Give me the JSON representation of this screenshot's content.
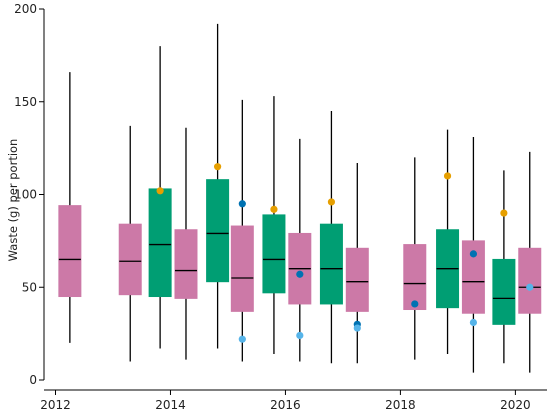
{
  "chart_data": {
    "type": "boxplot",
    "title": "",
    "xlabel": "",
    "ylabel": "Waste (g) per portion",
    "xlim": [
      2011.8,
      2020.55
    ],
    "ylim": [
      0,
      200
    ],
    "x_ticks": [
      2012,
      2014,
      2016,
      2018,
      2020
    ],
    "x_tick_labels": [
      "2012",
      "2014",
      "2016",
      "2018",
      "2020"
    ],
    "y_ticks": [
      0,
      50,
      100,
      150,
      200
    ],
    "y_tick_labels": [
      "0",
      "50",
      "100",
      "150",
      "200"
    ],
    "grid": false,
    "legend": "none",
    "colors": {
      "pink": "#cc79a7",
      "green": "#009e73",
      "orange": "#e69f00",
      "dark_blue": "#0072b2",
      "light_blue": "#56b4e9",
      "axis": "#000000"
    },
    "boxes": [
      {
        "x": 2012.25,
        "color": "pink",
        "whisker_low": 20,
        "q1": 45,
        "median": 65,
        "q3": 94,
        "whisker_high": 166
      },
      {
        "x": 2013.3,
        "color": "pink",
        "whisker_low": 10,
        "q1": 46,
        "median": 64,
        "q3": 84,
        "whisker_high": 137
      },
      {
        "x": 2013.82,
        "color": "green",
        "whisker_low": 17,
        "q1": 45,
        "median": 73,
        "q3": 103,
        "whisker_high": 180
      },
      {
        "x": 2014.27,
        "color": "pink",
        "whisker_low": 11,
        "q1": 44,
        "median": 59,
        "q3": 81,
        "whisker_high": 136
      },
      {
        "x": 2014.82,
        "color": "green",
        "whisker_low": 17,
        "q1": 53,
        "median": 79,
        "q3": 108,
        "whisker_high": 192
      },
      {
        "x": 2015.25,
        "color": "pink",
        "whisker_low": 10,
        "q1": 37,
        "median": 55,
        "q3": 83,
        "whisker_high": 151
      },
      {
        "x": 2015.8,
        "color": "green",
        "whisker_low": 14,
        "q1": 47,
        "median": 65,
        "q3": 89,
        "whisker_high": 153
      },
      {
        "x": 2016.25,
        "color": "pink",
        "whisker_low": 10,
        "q1": 41,
        "median": 60,
        "q3": 79,
        "whisker_high": 130
      },
      {
        "x": 2016.8,
        "color": "green",
        "whisker_low": 9,
        "q1": 41,
        "median": 60,
        "q3": 84,
        "whisker_high": 145
      },
      {
        "x": 2017.25,
        "color": "pink",
        "whisker_low": 9,
        "q1": 37,
        "median": 53,
        "q3": 71,
        "whisker_high": 117
      },
      {
        "x": 2018.25,
        "color": "pink",
        "whisker_low": 11,
        "q1": 38,
        "median": 52,
        "q3": 73,
        "whisker_high": 120
      },
      {
        "x": 2018.82,
        "color": "green",
        "whisker_low": 14,
        "q1": 39,
        "median": 60,
        "q3": 81,
        "whisker_high": 135
      },
      {
        "x": 2019.27,
        "color": "pink",
        "whisker_low": 4,
        "q1": 36,
        "median": 53,
        "q3": 75,
        "whisker_high": 131
      },
      {
        "x": 2019.8,
        "color": "green",
        "whisker_low": 9,
        "q1": 30,
        "median": 44,
        "q3": 65,
        "whisker_high": 113
      },
      {
        "x": 2020.25,
        "color": "pink",
        "whisker_low": 4,
        "q1": 36,
        "median": 50,
        "q3": 71,
        "whisker_high": 123
      }
    ],
    "points": [
      {
        "x": 2013.82,
        "y": 102,
        "color": "orange"
      },
      {
        "x": 2014.82,
        "y": 115,
        "color": "orange"
      },
      {
        "x": 2015.25,
        "y": 95,
        "color": "dark_blue"
      },
      {
        "x": 2015.25,
        "y": 22,
        "color": "light_blue"
      },
      {
        "x": 2015.8,
        "y": 92,
        "color": "orange"
      },
      {
        "x": 2016.25,
        "y": 57,
        "color": "dark_blue"
      },
      {
        "x": 2016.25,
        "y": 24,
        "color": "light_blue"
      },
      {
        "x": 2016.8,
        "y": 96,
        "color": "orange"
      },
      {
        "x": 2017.25,
        "y": 30,
        "color": "dark_blue"
      },
      {
        "x": 2017.25,
        "y": 28,
        "color": "light_blue"
      },
      {
        "x": 2018.25,
        "y": 41,
        "color": "dark_blue"
      },
      {
        "x": 2018.82,
        "y": 110,
        "color": "orange"
      },
      {
        "x": 2019.27,
        "y": 68,
        "color": "dark_blue"
      },
      {
        "x": 2019.27,
        "y": 31,
        "color": "light_blue"
      },
      {
        "x": 2019.8,
        "y": 90,
        "color": "orange"
      },
      {
        "x": 2020.25,
        "y": 50,
        "color": "light_blue"
      }
    ]
  }
}
